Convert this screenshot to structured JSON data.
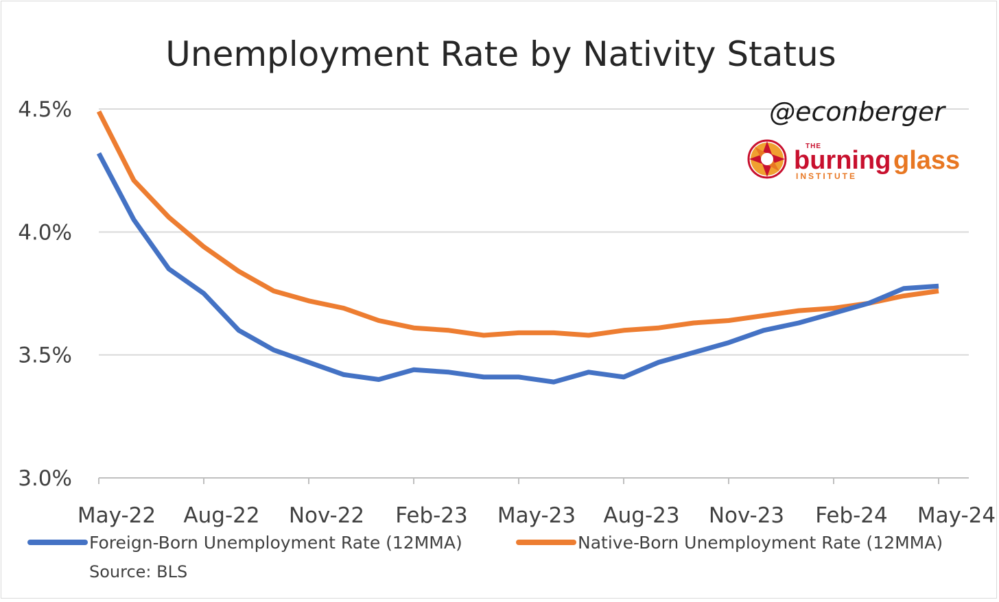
{
  "chart_data": {
    "type": "line",
    "title": "Unemployment Rate by Nativity Status",
    "x": [
      "May-22",
      "Jun-22",
      "Jul-22",
      "Aug-22",
      "Sep-22",
      "Oct-22",
      "Nov-22",
      "Dec-22",
      "Jan-23",
      "Feb-23",
      "Mar-23",
      "Apr-23",
      "May-23",
      "Jun-23",
      "Jul-23",
      "Aug-23",
      "Sep-23",
      "Oct-23",
      "Nov-23",
      "Dec-23",
      "Jan-24",
      "Feb-24",
      "Mar-24",
      "Apr-24",
      "May-24"
    ],
    "x_tick_labels": [
      "May-22",
      "Aug-22",
      "Nov-22",
      "Feb-23",
      "May-23",
      "Aug-23",
      "Nov-23",
      "Feb-24",
      "May-24"
    ],
    "ylim": [
      3.0,
      4.5
    ],
    "y_ticks": [
      3.0,
      3.5,
      4.0,
      4.5
    ],
    "y_tick_labels": [
      "3.0%",
      "3.5%",
      "4.0%",
      "4.5%"
    ],
    "grid": true,
    "legend_position": "bottom",
    "series": [
      {
        "name": "Foreign-Born Unemployment Rate (12MMA)",
        "color": "#4472c4",
        "values": [
          4.32,
          4.05,
          3.85,
          3.75,
          3.6,
          3.52,
          3.47,
          3.42,
          3.4,
          3.44,
          3.43,
          3.41,
          3.41,
          3.39,
          3.43,
          3.41,
          3.47,
          3.51,
          3.55,
          3.6,
          3.63,
          3.67,
          3.71,
          3.77,
          3.78
        ]
      },
      {
        "name": "Native-Born Unemployment Rate (12MMA)",
        "color": "#ed7d31",
        "values": [
          4.49,
          4.21,
          4.06,
          3.94,
          3.84,
          3.76,
          3.72,
          3.69,
          3.64,
          3.61,
          3.6,
          3.58,
          3.59,
          3.59,
          3.58,
          3.6,
          3.61,
          3.63,
          3.64,
          3.66,
          3.68,
          3.69,
          3.71,
          3.74,
          3.76
        ]
      }
    ]
  },
  "annotation": {
    "handle": "@econberger",
    "source": "Source: BLS",
    "logo_text": "THE burningglass INSTITUTE",
    "logo_colors": {
      "the_burning": "#c8102e",
      "glass": "#e87722",
      "institute": "#e87722"
    }
  }
}
